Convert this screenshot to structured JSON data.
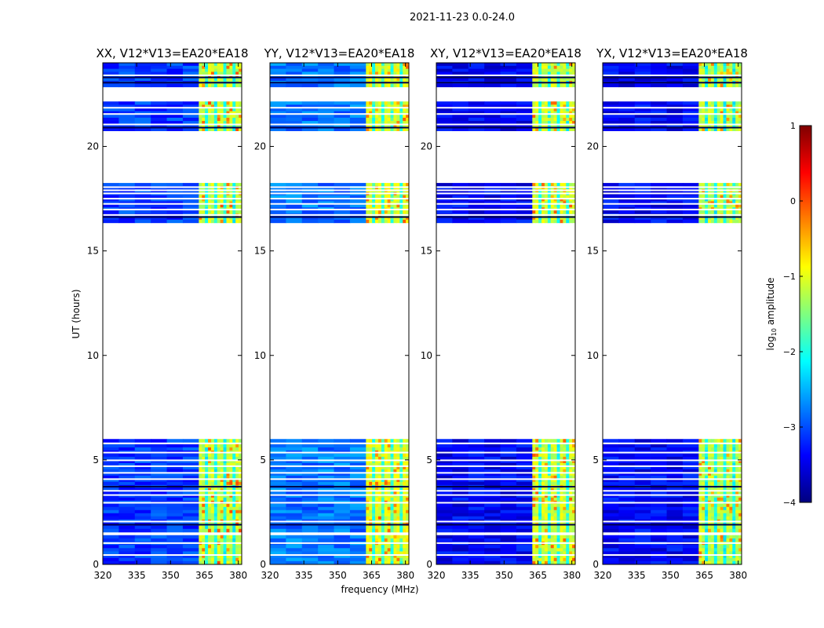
{
  "figure": {
    "suptitle": "2021-11-23 0.0-24.0",
    "xlabel": "frequency (MHz)",
    "ylabel": "UT (hours)"
  },
  "colorbar": {
    "label_prefix": "log",
    "label_sub": "10",
    "label_suffix": " amplitude",
    "min": -4,
    "max": 1,
    "ticks": [
      1,
      0,
      -1,
      -2,
      -3,
      -4
    ],
    "colormap": [
      "#00007f",
      "#0000ff",
      "#007fff",
      "#00ffff",
      "#7fff7f",
      "#ffff00",
      "#ff7f00",
      "#ff0000",
      "#7f0000"
    ]
  },
  "chart_data": {
    "type": "heatmap",
    "x_range": [
      320,
      381.5
    ],
    "y_range": [
      0,
      24
    ],
    "x_ticks": [
      320,
      335,
      350,
      365,
      380
    ],
    "y_ticks": [
      0,
      5,
      10,
      15,
      20
    ],
    "data_blocks_ut": [
      [
        0.0,
        1.4
      ],
      [
        1.55,
        5.75
      ],
      [
        5.85,
        6.0
      ],
      [
        16.35,
        18.25
      ],
      [
        20.75,
        22.15
      ],
      [
        22.85,
        24.0
      ]
    ],
    "white_gap_lines_ut": [
      0.45,
      1.02,
      2.05,
      2.95,
      3.32,
      3.52,
      4.08,
      4.38,
      4.7,
      4.98,
      5.35,
      16.72,
      16.98,
      17.25,
      17.5,
      17.75,
      17.9,
      18.05,
      21.05,
      21.55,
      21.85,
      23.4
    ],
    "dark_lines_ut": [
      1.9,
      3.72,
      16.62,
      20.9,
      23.05,
      23.3
    ],
    "band_bright_mhz": [
      [
        362.5,
        376
      ],
      [
        378,
        381.5
      ]
    ],
    "panels": [
      {
        "title": "XX, V12*V13=EA20*EA18",
        "base_level": -3.1,
        "band_level": -1.15,
        "hot_level": -0.2
      },
      {
        "title": "YY, V12*V13=EA20*EA18",
        "base_level": -2.8,
        "band_level": -1.0,
        "hot_level": -0.3
      },
      {
        "title": "XY, V12*V13=EA20*EA18",
        "base_level": -3.4,
        "band_level": -1.1,
        "hot_level": -0.3
      },
      {
        "title": "YX, V12*V13=EA20*EA18",
        "base_level": -3.4,
        "band_level": -1.2,
        "hot_level": -0.4
      }
    ]
  }
}
